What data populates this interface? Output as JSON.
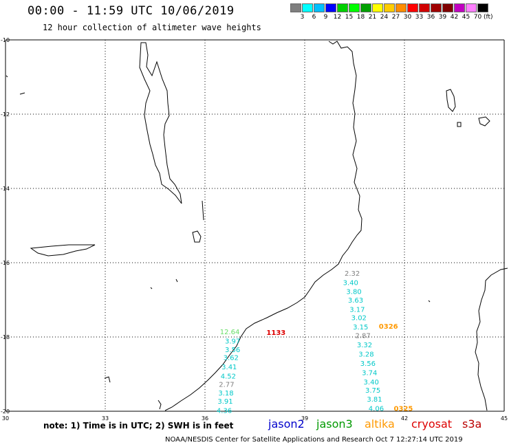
{
  "header": {
    "title": "00:00 - 11:59 UTC 10/06/2019",
    "subtitle": "12 hour collection of altimeter wave heights"
  },
  "scale": {
    "colors": [
      "#7f7f7f",
      "#00ffff",
      "#00bfff",
      "#0000ff",
      "#00d000",
      "#00ff00",
      "#00a000",
      "#ffff00",
      "#ffcc00",
      "#ff8c00",
      "#ff0000",
      "#d00000",
      "#a00000",
      "#800000",
      "#c000c0",
      "#ff80ff",
      "#000000"
    ],
    "labels": [
      "3",
      "6",
      "9",
      "12",
      "15",
      "18",
      "21",
      "24",
      "27",
      "30",
      "33",
      "36",
      "39",
      "42",
      "45",
      "70"
    ],
    "unit": "(ft)"
  },
  "map": {
    "lon_range": [
      30,
      45
    ],
    "lat_range": [
      -20,
      -10
    ],
    "lon_ticks": [
      "30",
      "33",
      "36",
      "39",
      "42",
      "45"
    ],
    "lat_ticks": [
      "-10",
      "-12",
      "-14",
      "-16",
      "-18",
      "-20"
    ],
    "grid": "dotted"
  },
  "observations": [
    {
      "text": "12.64",
      "lon": 36.45,
      "lat": -17.85,
      "color": "#66dd66"
    },
    {
      "text": "3.97",
      "lon": 36.6,
      "lat": -18.1,
      "color": "#00c8c8"
    },
    {
      "text": "3.56",
      "lon": 36.6,
      "lat": -18.33,
      "color": "#00c8c8"
    },
    {
      "text": "3.62",
      "lon": 36.55,
      "lat": -18.55,
      "color": "#00c8c8"
    },
    {
      "text": "3.41",
      "lon": 36.5,
      "lat": -18.8,
      "color": "#00c8c8"
    },
    {
      "text": "4.52",
      "lon": 36.47,
      "lat": -19.05,
      "color": "#00c8c8"
    },
    {
      "text": "2.77",
      "lon": 36.42,
      "lat": -19.27,
      "color": "#7f7f7f"
    },
    {
      "text": "3.18",
      "lon": 36.4,
      "lat": -19.5,
      "color": "#00c8c8"
    },
    {
      "text": "3.91",
      "lon": 36.38,
      "lat": -19.72,
      "color": "#00c8c8"
    },
    {
      "text": "4.36",
      "lon": 36.35,
      "lat": -19.97,
      "color": "#00c8c8"
    },
    {
      "text": "1133",
      "lon": 37.85,
      "lat": -17.87,
      "color": "#dd0000",
      "bold": true
    },
    {
      "text": "2.32",
      "lon": 40.2,
      "lat": -16.28,
      "color": "#7f7f7f"
    },
    {
      "text": "3.40",
      "lon": 40.15,
      "lat": -16.53,
      "color": "#00c8c8"
    },
    {
      "text": "3.80",
      "lon": 40.25,
      "lat": -16.77,
      "color": "#00c8c8"
    },
    {
      "text": "3.63",
      "lon": 40.3,
      "lat": -17.0,
      "color": "#00c8c8"
    },
    {
      "text": "3.17",
      "lon": 40.35,
      "lat": -17.25,
      "color": "#00c8c8"
    },
    {
      "text": "3.02",
      "lon": 40.4,
      "lat": -17.47,
      "color": "#00c8c8"
    },
    {
      "text": "3.15",
      "lon": 40.45,
      "lat": -17.72,
      "color": "#00c8c8"
    },
    {
      "text": "0326",
      "lon": 41.23,
      "lat": -17.7,
      "color": "#ff9900",
      "bold": true
    },
    {
      "text": "2.87",
      "lon": 40.52,
      "lat": -17.95,
      "color": "#7f7f7f"
    },
    {
      "text": "3.32",
      "lon": 40.57,
      "lat": -18.2,
      "color": "#00c8c8"
    },
    {
      "text": "3.28",
      "lon": 40.62,
      "lat": -18.45,
      "color": "#00c8c8"
    },
    {
      "text": "3.56",
      "lon": 40.67,
      "lat": -18.7,
      "color": "#00c8c8"
    },
    {
      "text": "3.74",
      "lon": 40.72,
      "lat": -18.95,
      "color": "#00c8c8"
    },
    {
      "text": "3.40",
      "lon": 40.77,
      "lat": -19.2,
      "color": "#00c8c8"
    },
    {
      "text": "3.75",
      "lon": 40.82,
      "lat": -19.43,
      "color": "#00c8c8"
    },
    {
      "text": "3.81",
      "lon": 40.87,
      "lat": -19.67,
      "color": "#00c8c8"
    },
    {
      "text": "4.06",
      "lon": 40.92,
      "lat": -19.92,
      "color": "#00c8c8"
    },
    {
      "text": "0325",
      "lon": 41.68,
      "lat": -19.92,
      "color": "#ff9900",
      "bold": true
    }
  ],
  "footer": {
    "note": "note: 1) Time is in UTC; 2) SWH is in feet",
    "satellites": [
      {
        "name": "jason2",
        "color": "#0000cc"
      },
      {
        "name": "jason3",
        "color": "#009900"
      },
      {
        "name": "altika",
        "color": "#ff9900"
      },
      {
        "name": "cryosat",
        "color": "#dd0000"
      },
      {
        "name": "s3a",
        "color": "#bb0000"
      }
    ],
    "credit": "NOAA/NESDIS Center for Satellite Applications and Research   Oct  7 12:27:14 UTC 2019"
  }
}
